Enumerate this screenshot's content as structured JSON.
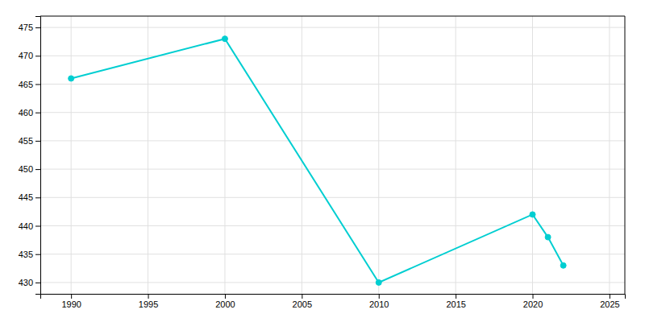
{
  "chart_data": {
    "type": "line",
    "x": [
      1990,
      2000,
      2010,
      2020,
      2021,
      2022
    ],
    "values": [
      466,
      473,
      430,
      442,
      438,
      433
    ],
    "color": "#00CED1",
    "marker": "circle",
    "xlim": [
      1988,
      2026
    ],
    "ylim": [
      428,
      477
    ],
    "xticks": [
      1990,
      1995,
      2000,
      2005,
      2010,
      2015,
      2020,
      2025
    ],
    "yticks": [
      430,
      435,
      440,
      445,
      450,
      455,
      460,
      465,
      470,
      475
    ],
    "grid": true
  }
}
